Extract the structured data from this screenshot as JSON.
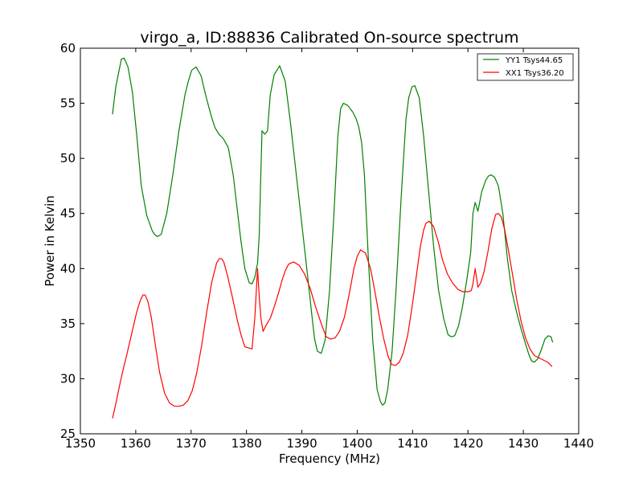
{
  "chart_data": {
    "type": "line",
    "title": "virgo_a, ID:88836 Calibrated On-source spectrum",
    "xlabel": "Frequency (MHz)",
    "ylabel": "Power in Kelvin",
    "xlim": [
      1350,
      1440
    ],
    "ylim": [
      25,
      60
    ],
    "xticks": [
      1350,
      1360,
      1370,
      1380,
      1390,
      1400,
      1410,
      1420,
      1430,
      1440
    ],
    "yticks": [
      25,
      30,
      35,
      40,
      45,
      50,
      55,
      60
    ],
    "grid": false,
    "legend_position": "top-right",
    "series": [
      {
        "name": "YY1 Tsys44.65",
        "color": "#008000",
        "x": [
          1355.8,
          1356.4,
          1357.0,
          1357.4,
          1357.9,
          1358.6,
          1359.4,
          1360.2,
          1361.0,
          1362.0,
          1363.0,
          1363.4,
          1363.9,
          1364.6,
          1365.6,
          1366.7,
          1367.8,
          1368.9,
          1369.5,
          1370.1,
          1370.9,
          1371.8,
          1372.6,
          1373.6,
          1374.3,
          1375.0,
          1375.8,
          1376.7,
          1377.6,
          1378.3,
          1379.0,
          1379.7,
          1380.5,
          1381.0,
          1381.5,
          1382.0,
          1382.3,
          1382.8,
          1383.3,
          1383.8,
          1384.3,
          1385.0,
          1386.0,
          1387.0,
          1388.0,
          1389.0,
          1390.0,
          1391.0,
          1391.8,
          1392.3,
          1392.8,
          1393.5,
          1394.2,
          1395.0,
          1395.8,
          1396.5,
          1397.0,
          1397.5,
          1398.3,
          1399.2,
          1399.8,
          1400.3,
          1400.8,
          1401.3,
          1402.0,
          1402.8,
          1403.6,
          1404.2,
          1404.6,
          1405.0,
          1405.5,
          1406.3,
          1407.0,
          1408.0,
          1408.8,
          1409.3,
          1409.9,
          1410.4,
          1411.2,
          1412.0,
          1412.9,
          1413.8,
          1414.7,
          1415.6,
          1416.4,
          1417.0,
          1417.6,
          1418.3,
          1419.0,
          1419.8,
          1420.5,
          1420.9,
          1421.3,
          1421.8,
          1422.5,
          1423.2,
          1423.7,
          1424.2,
          1424.8,
          1425.5,
          1426.3,
          1427.1,
          1427.9,
          1428.8,
          1429.6,
          1430.5,
          1431.0,
          1431.5,
          1432.0,
          1432.6,
          1433.3,
          1433.9,
          1434.5,
          1435.0,
          1435.3
        ],
        "values": [
          54.0,
          56.5,
          58.0,
          59.0,
          59.1,
          58.3,
          56.0,
          52.0,
          47.5,
          44.8,
          43.4,
          43.1,
          42.9,
          43.1,
          45.0,
          48.5,
          52.5,
          55.8,
          57.0,
          58.0,
          58.3,
          57.5,
          55.8,
          53.9,
          52.8,
          52.2,
          51.8,
          51.0,
          48.5,
          45.5,
          42.5,
          40.0,
          38.7,
          38.6,
          39.2,
          40.5,
          43.0,
          52.5,
          52.2,
          52.5,
          55.8,
          57.6,
          58.4,
          57.0,
          53.0,
          48.5,
          44.0,
          39.5,
          35.8,
          33.6,
          32.5,
          32.3,
          33.5,
          38.0,
          45.0,
          52.0,
          54.5,
          55.0,
          54.8,
          54.2,
          53.6,
          52.8,
          51.4,
          48.5,
          41.0,
          33.5,
          29.0,
          27.9,
          27.6,
          27.8,
          29.0,
          32.5,
          38.0,
          47.0,
          53.5,
          55.5,
          56.5,
          56.6,
          55.5,
          52.0,
          47.0,
          42.0,
          38.0,
          35.5,
          34.0,
          33.8,
          33.9,
          34.8,
          36.5,
          39.0,
          41.5,
          45.0,
          46.0,
          45.2,
          47.0,
          48.0,
          48.4,
          48.5,
          48.3,
          47.5,
          45.0,
          41.0,
          38.0,
          36.0,
          34.5,
          33.0,
          32.2,
          31.6,
          31.5,
          31.8,
          32.7,
          33.6,
          33.9,
          33.8,
          33.3
        ]
      },
      {
        "name": "XX1 Tsys36.20",
        "color": "#ff0000",
        "x": [
          1355.8,
          1356.3,
          1356.8,
          1357.3,
          1357.8,
          1358.3,
          1358.9,
          1359.5,
          1360.1,
          1360.5,
          1360.9,
          1361.3,
          1361.7,
          1362.2,
          1362.8,
          1363.5,
          1364.3,
          1365.2,
          1366.1,
          1367.0,
          1367.8,
          1368.6,
          1369.4,
          1370.2,
          1371.0,
          1371.9,
          1372.8,
          1373.7,
          1374.6,
          1375.1,
          1375.5,
          1375.9,
          1376.6,
          1377.5,
          1378.3,
          1379.0,
          1379.7,
          1380.4,
          1381.0,
          1381.5,
          1382.0,
          1382.3,
          1382.6,
          1383.0,
          1383.6,
          1384.3,
          1385.0,
          1385.8,
          1386.4,
          1387.0,
          1387.6,
          1388.5,
          1389.5,
          1390.5,
          1391.5,
          1392.5,
          1393.5,
          1394.4,
          1395.2,
          1396.0,
          1396.8,
          1397.7,
          1398.6,
          1399.4,
          1400.0,
          1400.6,
          1401.5,
          1402.4,
          1403.2,
          1404.0,
          1404.8,
          1405.6,
          1406.2,
          1406.9,
          1407.6,
          1408.3,
          1409.1,
          1409.9,
          1410.7,
          1411.4,
          1412.0,
          1412.4,
          1413.0,
          1413.8,
          1414.6,
          1415.4,
          1416.3,
          1417.2,
          1418.2,
          1419.0,
          1419.6,
          1420.1,
          1420.6,
          1420.9,
          1421.3,
          1421.8,
          1422.3,
          1422.9,
          1423.6,
          1424.3,
          1425.0,
          1425.5,
          1426.0,
          1426.6,
          1427.3,
          1428.1,
          1428.8,
          1429.6,
          1430.4,
          1431.2,
          1432.0,
          1432.8,
          1433.6,
          1434.4,
          1435.2
        ],
        "values": [
          26.4,
          27.5,
          28.7,
          29.9,
          31.0,
          32.0,
          33.3,
          34.6,
          35.9,
          36.6,
          37.2,
          37.6,
          37.6,
          37.0,
          35.6,
          33.2,
          30.6,
          28.7,
          27.8,
          27.5,
          27.5,
          27.6,
          28.0,
          28.9,
          30.5,
          33.0,
          36.0,
          38.7,
          40.5,
          40.9,
          40.9,
          40.6,
          39.3,
          37.3,
          35.4,
          34.0,
          32.9,
          32.8,
          32.7,
          35.5,
          40.0,
          37.5,
          35.5,
          34.3,
          34.9,
          35.5,
          36.5,
          37.8,
          38.9,
          39.8,
          40.4,
          40.6,
          40.3,
          39.5,
          38.2,
          36.5,
          35.0,
          33.8,
          33.6,
          33.7,
          34.3,
          35.6,
          37.8,
          40.0,
          41.1,
          41.7,
          41.4,
          40.0,
          37.9,
          35.6,
          33.6,
          32.0,
          31.3,
          31.2,
          31.5,
          32.3,
          33.9,
          36.5,
          39.4,
          42.0,
          43.5,
          44.1,
          44.3,
          43.8,
          42.5,
          40.8,
          39.5,
          38.7,
          38.1,
          37.9,
          37.9,
          37.9,
          38.0,
          38.6,
          40.0,
          38.3,
          38.7,
          39.7,
          41.5,
          43.6,
          44.9,
          45.0,
          44.7,
          43.6,
          41.7,
          39.3,
          37.2,
          35.2,
          33.7,
          32.7,
          32.1,
          31.9,
          31.7,
          31.5,
          31.1
        ]
      }
    ]
  }
}
